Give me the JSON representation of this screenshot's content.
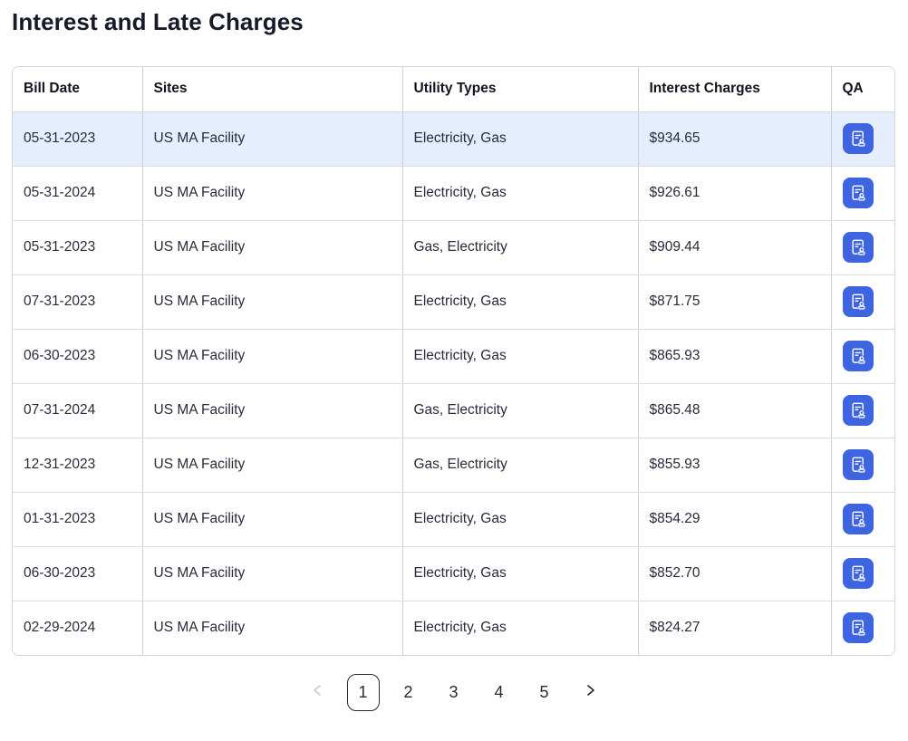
{
  "page": {
    "title": "Interest and Late Charges"
  },
  "table": {
    "columns": [
      {
        "key": "bill_date",
        "label": "Bill Date"
      },
      {
        "key": "site",
        "label": "Sites"
      },
      {
        "key": "utility_types",
        "label": "Utility Types"
      },
      {
        "key": "interest_charges",
        "label": "Interest Charges"
      },
      {
        "key": "qa",
        "label": "QA"
      }
    ],
    "rows": [
      {
        "bill_date": "05-31-2023",
        "site": "US MA Facility",
        "utility_types": "Electricity, Gas",
        "interest_charges": "$934.65",
        "highlighted": true
      },
      {
        "bill_date": "05-31-2024",
        "site": "US MA Facility",
        "utility_types": "Electricity, Gas",
        "interest_charges": "$926.61",
        "highlighted": false
      },
      {
        "bill_date": "05-31-2023",
        "site": "US MA Facility",
        "utility_types": "Gas, Electricity",
        "interest_charges": "$909.44",
        "highlighted": false
      },
      {
        "bill_date": "07-31-2023",
        "site": "US MA Facility",
        "utility_types": "Electricity, Gas",
        "interest_charges": "$871.75",
        "highlighted": false
      },
      {
        "bill_date": "06-30-2023",
        "site": "US MA Facility",
        "utility_types": "Electricity, Gas",
        "interest_charges": "$865.93",
        "highlighted": false
      },
      {
        "bill_date": "07-31-2024",
        "site": "US MA Facility",
        "utility_types": "Gas, Electricity",
        "interest_charges": "$865.48",
        "highlighted": false
      },
      {
        "bill_date": "12-31-2023",
        "site": "US MA Facility",
        "utility_types": "Gas, Electricity",
        "interest_charges": "$855.93",
        "highlighted": false
      },
      {
        "bill_date": "01-31-2023",
        "site": "US MA Facility",
        "utility_types": "Electricity, Gas",
        "interest_charges": "$854.29",
        "highlighted": false
      },
      {
        "bill_date": "06-30-2023",
        "site": "US MA Facility",
        "utility_types": "Electricity, Gas",
        "interest_charges": "$852.70",
        "highlighted": false
      },
      {
        "bill_date": "02-29-2024",
        "site": "US MA Facility",
        "utility_types": "Electricity, Gas",
        "interest_charges": "$824.27",
        "highlighted": false
      }
    ],
    "qa_button_icon": "document-user-icon"
  },
  "pagination": {
    "pages": [
      "1",
      "2",
      "3",
      "4",
      "5"
    ],
    "current_page": "1"
  },
  "colors": {
    "accent_blue": "#3e64e0",
    "row_highlight": "#e4eefc",
    "text_dark": "#161a29",
    "disabled_chevron": "#c5cad3"
  }
}
